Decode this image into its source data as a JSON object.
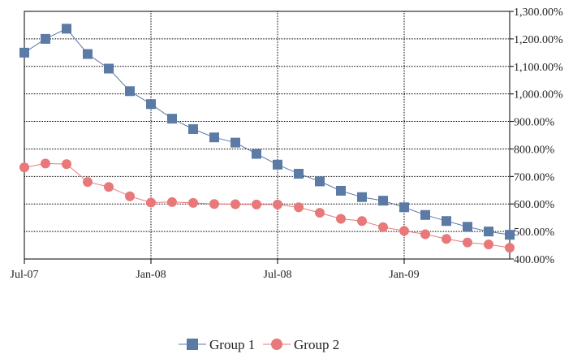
{
  "chart_data": {
    "type": "line",
    "x": [
      "2007-07",
      "2007-08",
      "2007-09",
      "2007-10",
      "2007-11",
      "2007-12",
      "2008-01",
      "2008-02",
      "2008-03",
      "2008-04",
      "2008-05",
      "2008-06",
      "2008-07",
      "2008-08",
      "2008-09",
      "2008-10",
      "2008-11",
      "2008-12",
      "2009-01",
      "2009-02",
      "2009-03",
      "2009-04",
      "2009-05",
      "2009-06"
    ],
    "series": [
      {
        "name": "Group 1",
        "color": "#5b7aa6",
        "marker": "square",
        "values": [
          1150,
          1200,
          1237,
          1145,
          1092,
          1010,
          963,
          910,
          872,
          842,
          823,
          782,
          743,
          710,
          682,
          648,
          625,
          612,
          588,
          560,
          538,
          517,
          500,
          488
        ]
      },
      {
        "name": "Group 2",
        "color": "#e8787a",
        "marker": "circle",
        "values": [
          733,
          747,
          745,
          680,
          662,
          628,
          605,
          607,
          604,
          600,
          599,
          598,
          598,
          588,
          568,
          546,
          538,
          516,
          502,
          490,
          473,
          460,
          453,
          441
        ]
      }
    ],
    "x_ticks": [
      "Jul-07",
      "Jan-08",
      "Jul-08",
      "Jan-09"
    ],
    "y_ticks": [
      "400.00%",
      "500.00%",
      "600.00%",
      "700.00%",
      "800.00%",
      "900.00%",
      "1,000.00%",
      "1,100.00%",
      "1,200.00%",
      "1,300.00%"
    ],
    "ylim": [
      400,
      1300
    ],
    "xlim": [
      "2007-07",
      "2009-06"
    ],
    "y_axis_side": "right",
    "grid": true,
    "legend_position": "bottom-center",
    "title": "",
    "xlabel": "",
    "ylabel": ""
  }
}
